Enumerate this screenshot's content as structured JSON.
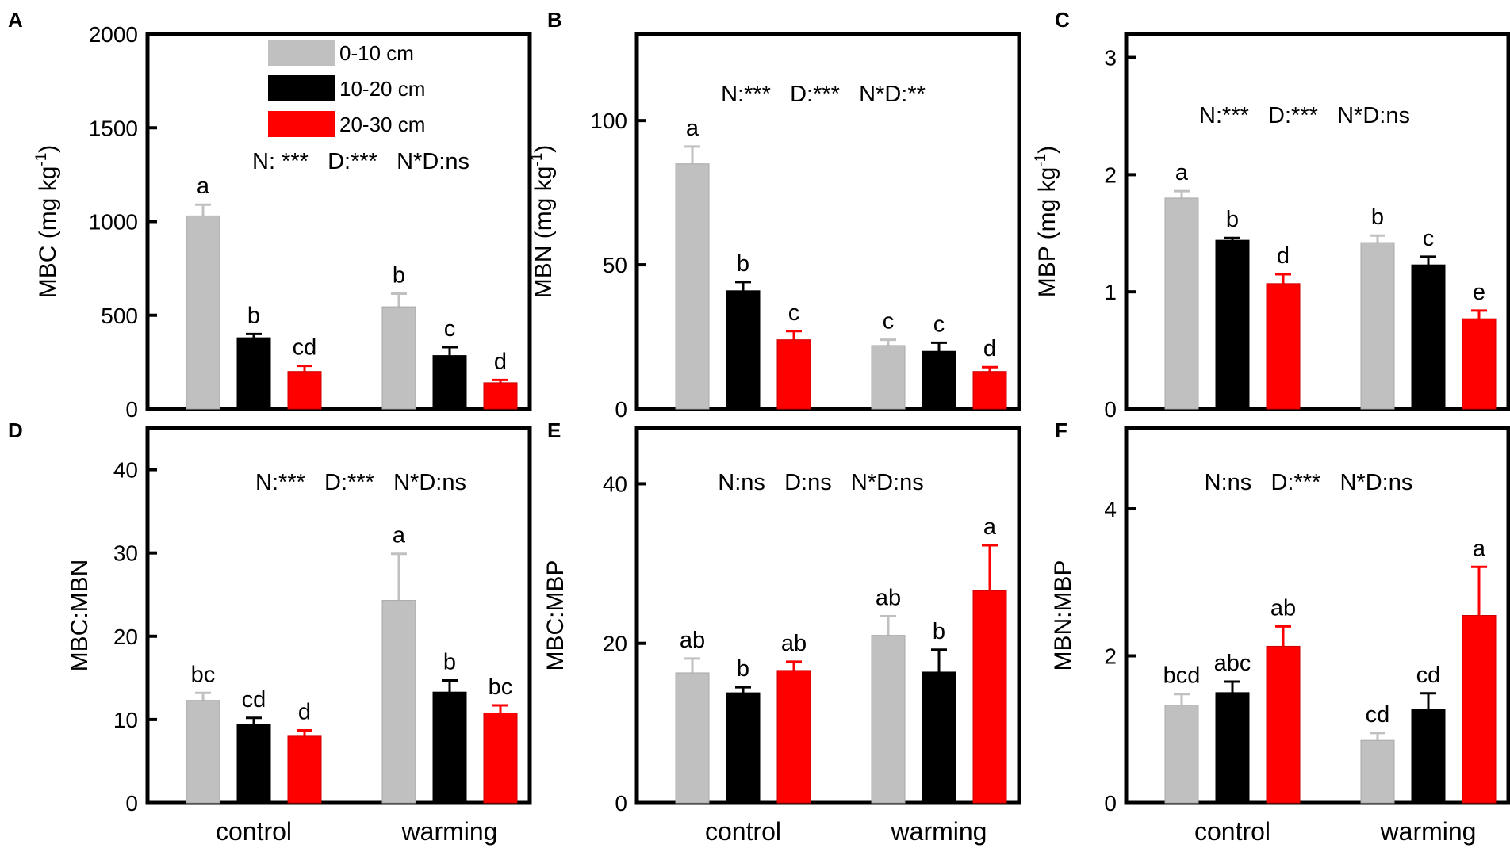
{
  "legend": [
    {
      "label": "0-10 cm",
      "color": "#c0c0c0"
    },
    {
      "label": "10-20 cm",
      "color": "#000000"
    },
    {
      "label": "20-30 cm",
      "color": "#ff0000"
    }
  ],
  "groups": [
    "control",
    "warming"
  ],
  "chart_data": [
    {
      "type": "bar",
      "panel": "A",
      "ylabel": "MBC (mg kg",
      "ylabel_sup": "-1",
      "ylabel_close": ")",
      "ylim": [
        0,
        2000
      ],
      "yticks": [
        0,
        500,
        1000,
        1500,
        2000
      ],
      "categories": [
        "control",
        "warming"
      ],
      "stats": "N: ***   D:***   N*D:ns",
      "series": [
        {
          "name": "0-10 cm",
          "values": [
            1030,
            545
          ],
          "errors": [
            60,
            70
          ],
          "letters": [
            "a",
            "b"
          ]
        },
        {
          "name": "10-20 cm",
          "values": [
            380,
            285
          ],
          "errors": [
            20,
            45
          ],
          "letters": [
            "b",
            "c"
          ]
        },
        {
          "name": "20-30 cm",
          "values": [
            200,
            140
          ],
          "errors": [
            30,
            15
          ],
          "letters": [
            "cd",
            "d"
          ]
        }
      ]
    },
    {
      "type": "bar",
      "panel": "B",
      "ylabel": "MBN (mg kg",
      "ylabel_sup": "-1",
      "ylabel_close": ")",
      "ylim": [
        0,
        130
      ],
      "yticks": [
        0,
        50,
        100
      ],
      "categories": [
        "control",
        "warming"
      ],
      "stats": "N:***   D:***   N*D:**",
      "series": [
        {
          "name": "0-10 cm",
          "values": [
            85,
            22
          ],
          "errors": [
            6,
            2
          ],
          "letters": [
            "a",
            "c"
          ]
        },
        {
          "name": "10-20 cm",
          "values": [
            41,
            20
          ],
          "errors": [
            3,
            3
          ],
          "letters": [
            "b",
            "c"
          ]
        },
        {
          "name": "20-30 cm",
          "values": [
            24,
            13
          ],
          "errors": [
            3,
            1.5
          ],
          "letters": [
            "c",
            "d"
          ]
        }
      ]
    },
    {
      "type": "bar",
      "panel": "C",
      "ylabel": "MBP (mg kg",
      "ylabel_sup": "-1",
      "ylabel_close": ")",
      "ylim": [
        0,
        3.2
      ],
      "yticks": [
        0,
        1,
        2,
        3
      ],
      "categories": [
        "control",
        "warming"
      ],
      "stats": "N:***   D:***   N*D:ns",
      "series": [
        {
          "name": "0-10 cm",
          "values": [
            1.8,
            1.42
          ],
          "errors": [
            0.06,
            0.06
          ],
          "letters": [
            "a",
            "b"
          ]
        },
        {
          "name": "10-20 cm",
          "values": [
            1.44,
            1.23
          ],
          "errors": [
            0.02,
            0.07
          ],
          "letters": [
            "b",
            "c"
          ]
        },
        {
          "name": "20-30 cm",
          "values": [
            1.07,
            0.77
          ],
          "errors": [
            0.08,
            0.07
          ],
          "letters": [
            "d",
            "e"
          ]
        }
      ]
    },
    {
      "type": "bar",
      "panel": "D",
      "ylabel": "MBC:MBN",
      "ylabel_sup": "",
      "ylabel_close": "",
      "ylim": [
        0,
        45
      ],
      "yticks": [
        0,
        10,
        20,
        30,
        40
      ],
      "categories": [
        "control",
        "warming"
      ],
      "stats": "N:***   D:***   N*D:ns",
      "series": [
        {
          "name": "0-10 cm",
          "values": [
            12.3,
            24.3
          ],
          "errors": [
            0.9,
            5.6
          ],
          "letters": [
            "bc",
            "a"
          ]
        },
        {
          "name": "10-20 cm",
          "values": [
            9.4,
            13.3
          ],
          "errors": [
            0.8,
            1.4
          ],
          "letters": [
            "cd",
            "b"
          ]
        },
        {
          "name": "20-30 cm",
          "values": [
            8.0,
            10.8
          ],
          "errors": [
            0.7,
            0.9
          ],
          "letters": [
            "d",
            "bc"
          ]
        }
      ]
    },
    {
      "type": "bar",
      "panel": "E",
      "ylabel": "MBC:MBP",
      "ylabel_sup": "",
      "ylabel_close": "",
      "ylim": [
        0,
        47
      ],
      "yticks": [
        0,
        20,
        40
      ],
      "categories": [
        "control",
        "warming"
      ],
      "stats": "N:ns   D:ns   N*D:ns",
      "series": [
        {
          "name": "0-10 cm",
          "values": [
            16.3,
            21.0
          ],
          "errors": [
            1.8,
            2.4
          ],
          "letters": [
            "ab",
            "ab"
          ]
        },
        {
          "name": "10-20 cm",
          "values": [
            13.8,
            16.4
          ],
          "errors": [
            0.7,
            2.8
          ],
          "letters": [
            "b",
            "b"
          ]
        },
        {
          "name": "20-30 cm",
          "values": [
            16.6,
            26.6
          ],
          "errors": [
            1.1,
            5.7
          ],
          "letters": [
            "ab",
            "a"
          ]
        }
      ]
    },
    {
      "type": "bar",
      "panel": "F",
      "ylabel": "MBN:MBP",
      "ylabel_sup": "",
      "ylabel_close": "",
      "ylim": [
        0,
        5.1
      ],
      "yticks": [
        0,
        2,
        4
      ],
      "categories": [
        "control",
        "warming"
      ],
      "stats": "N:ns   D:***   N*D:ns",
      "series": [
        {
          "name": "0-10 cm",
          "values": [
            1.33,
            0.85
          ],
          "errors": [
            0.15,
            0.1
          ],
          "letters": [
            "bcd",
            "cd"
          ]
        },
        {
          "name": "10-20 cm",
          "values": [
            1.5,
            1.27
          ],
          "errors": [
            0.15,
            0.22
          ],
          "letters": [
            "abc",
            "cd"
          ]
        },
        {
          "name": "20-30 cm",
          "values": [
            2.13,
            2.55
          ],
          "errors": [
            0.27,
            0.66
          ],
          "letters": [
            "ab",
            "a"
          ]
        }
      ]
    }
  ]
}
